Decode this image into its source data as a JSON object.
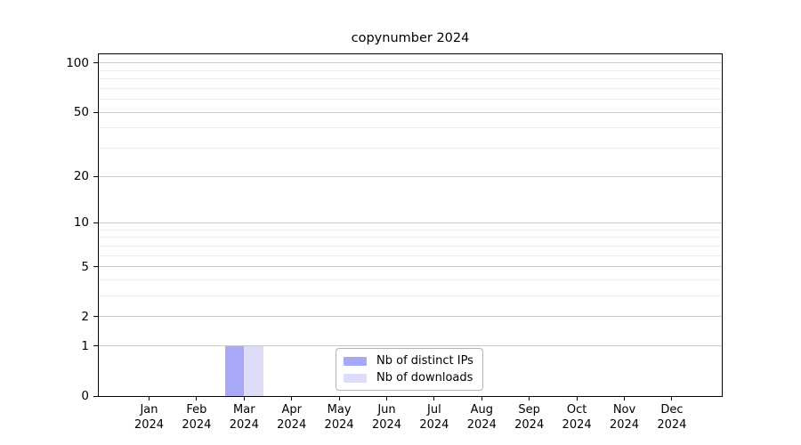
{
  "page": {
    "background": "#ffffff"
  },
  "chart_data": {
    "type": "bar",
    "title": "copynumber 2024",
    "x": [
      "Jan",
      "Feb",
      "Mar",
      "Apr",
      "May",
      "Jun",
      "Jul",
      "Aug",
      "Sep",
      "Oct",
      "Nov",
      "Dec"
    ],
    "x_year": "2024",
    "series": [
      {
        "name": "Nb of distinct IPs",
        "key": "distinct-ips",
        "color": "#a8a8f8",
        "values": [
          0,
          0,
          1,
          0,
          0,
          0,
          0,
          0,
          0,
          0,
          0,
          0
        ]
      },
      {
        "name": "Nb of downloads",
        "key": "downloads",
        "color": "#dcdcf8",
        "values": [
          0,
          0,
          1,
          0,
          0,
          0,
          0,
          0,
          0,
          0,
          0,
          0
        ]
      }
    ],
    "y_axis": {
      "scale": "log10(1+y)",
      "major_ticks": [
        0,
        1,
        2,
        5,
        10,
        20,
        50,
        100
      ],
      "minor_gridlines": [
        3,
        4,
        6,
        7,
        8,
        9,
        30,
        40,
        60,
        70,
        80,
        90
      ],
      "top_transformed": 2.056
    },
    "grid": true,
    "legend_position": "lower-center",
    "colors": {
      "axis": "#000000",
      "grid_major": "#c9c9c9",
      "grid_minor": "#eeeeee",
      "legend_border": "#b3b3b3",
      "text": "#000000"
    }
  }
}
